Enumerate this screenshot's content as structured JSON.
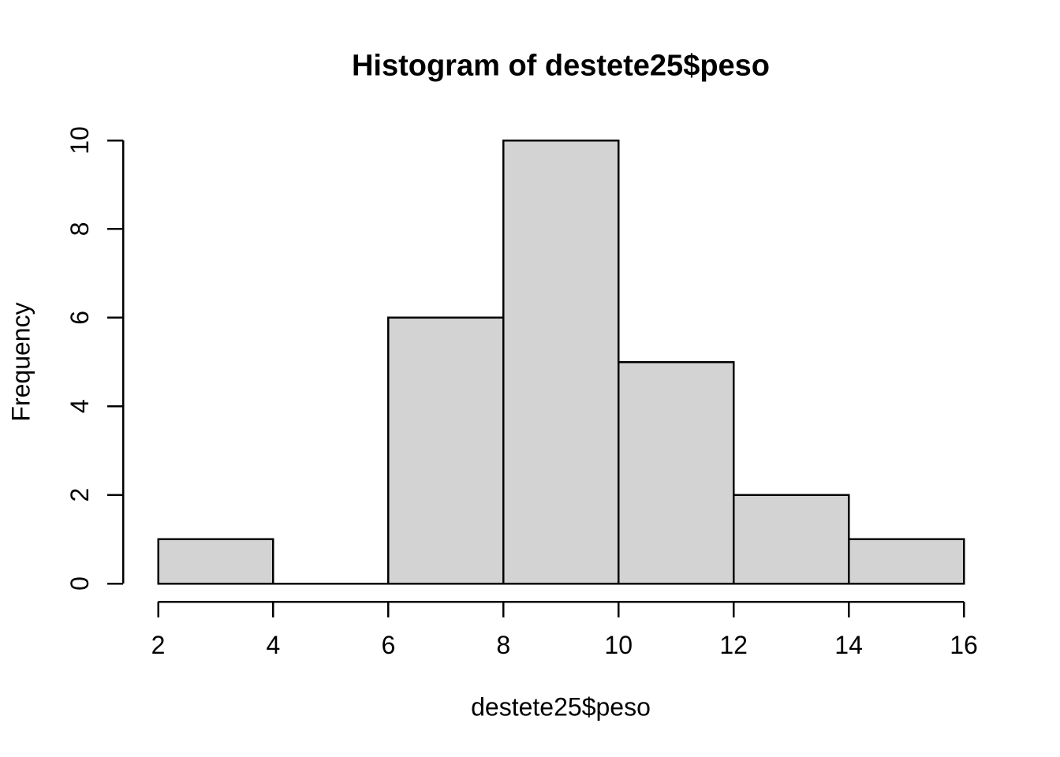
{
  "chart_data": {
    "type": "bar",
    "subtype": "histogram",
    "title": "Histogram of destete25$peso",
    "xlabel": "destete25$peso",
    "ylabel": "Frequency",
    "bin_edges": [
      2,
      4,
      6,
      8,
      10,
      12,
      14,
      16
    ],
    "bin_width": 2,
    "bins": [
      {
        "start": 2,
        "end": 4,
        "count": 1
      },
      {
        "start": 4,
        "end": 6,
        "count": 0
      },
      {
        "start": 6,
        "end": 8,
        "count": 6
      },
      {
        "start": 8,
        "end": 10,
        "count": 10
      },
      {
        "start": 10,
        "end": 12,
        "count": 5
      },
      {
        "start": 12,
        "end": 14,
        "count": 2
      },
      {
        "start": 14,
        "end": 16,
        "count": 1
      }
    ],
    "values": [
      1,
      0,
      6,
      10,
      5,
      2,
      1
    ],
    "x_ticks": [
      2,
      4,
      6,
      8,
      10,
      12,
      14,
      16
    ],
    "y_ticks": [
      0,
      2,
      4,
      6,
      8,
      10
    ],
    "xlim": [
      2,
      16
    ],
    "ylim": [
      0,
      10
    ],
    "grid": false,
    "legend": "none",
    "colors": {
      "bar_fill": "#d3d3d3",
      "bar_stroke": "#000000",
      "axis": "#000000",
      "text": "#000000",
      "background": "#ffffff"
    }
  }
}
